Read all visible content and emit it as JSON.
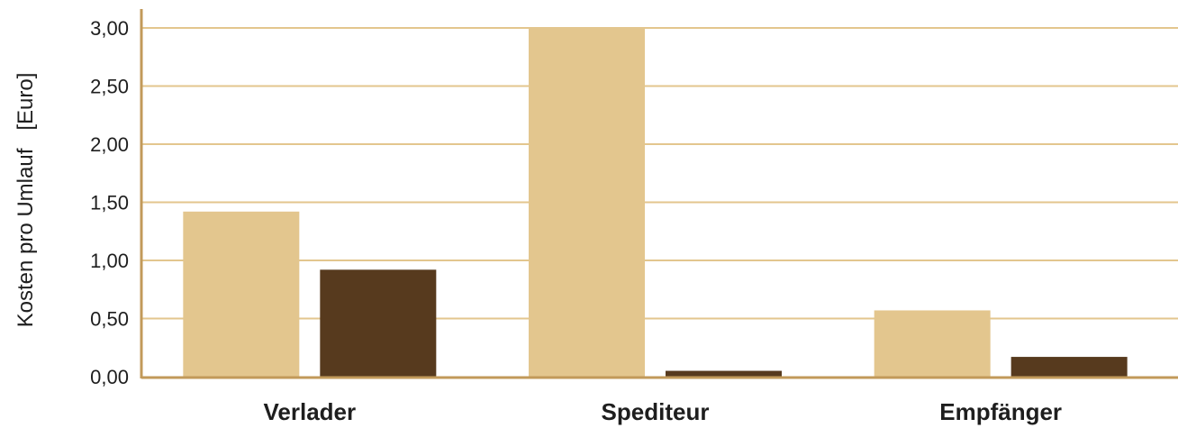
{
  "chart_data": {
    "type": "bar",
    "categories": [
      "Verlader",
      "Spediteur",
      "Empfänger"
    ],
    "series": [
      {
        "values": [
          1.42,
          3.0,
          0.57
        ],
        "color": "#e3c68e"
      },
      {
        "values": [
          0.92,
          0.05,
          0.17
        ],
        "color": "#573a1e"
      }
    ],
    "ylabel": "Kosten pro Umlauf   [Euro]",
    "ylim": [
      0,
      3.0
    ],
    "yticks": [
      0,
      0.5,
      1.0,
      1.5,
      2.0,
      2.5,
      3.0
    ],
    "ytick_labels": [
      "0,00",
      "0,50",
      "1,00",
      "1,50",
      "2,00",
      "2,50",
      "3,00"
    ],
    "grid": true,
    "gridline_color": "#e3c68e",
    "axis_color": "#c29a5a"
  }
}
